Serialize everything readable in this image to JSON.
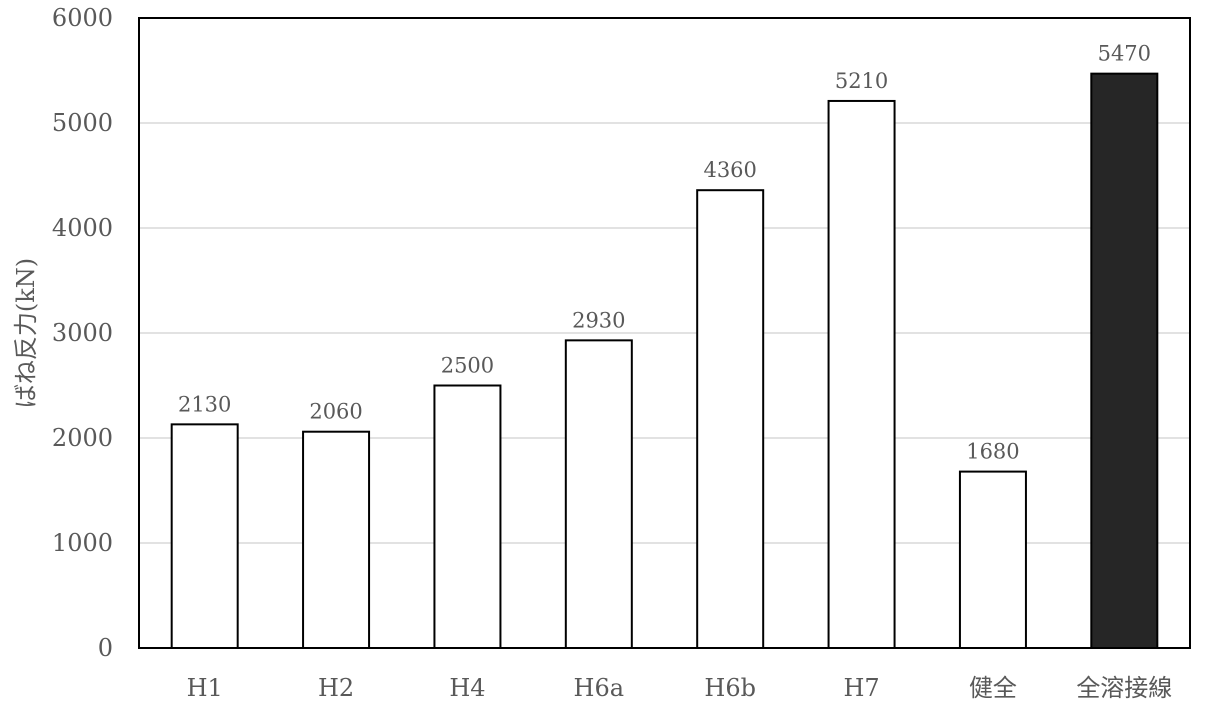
{
  "chart_data": {
    "type": "bar",
    "categories": [
      "H1",
      "H2",
      "H4",
      "H6a",
      "H6b",
      "H7",
      "健全",
      "全溶接線"
    ],
    "values": [
      2130,
      2060,
      2500,
      2930,
      4360,
      5210,
      1680,
      5470
    ],
    "data_labels": [
      "2130",
      "2060",
      "2500",
      "2930",
      "4360",
      "5210",
      "1680",
      "5470"
    ],
    "title": "",
    "xlabel": "",
    "ylabel": "ばね反力(kN)",
    "ylim": [
      0,
      6000
    ],
    "yticks": [
      "0",
      "1000",
      "2000",
      "3000",
      "4000",
      "5000",
      "6000"
    ],
    "grid": true,
    "legend": "none",
    "colors": {
      "bar_fill": "#ffffff",
      "bar_fill_highlight": "#262626",
      "bar_stroke": "#000000",
      "grid": "#d9d9d9",
      "frame": "#000000",
      "text": "#595959"
    },
    "highlight_category": "全溶接線"
  }
}
